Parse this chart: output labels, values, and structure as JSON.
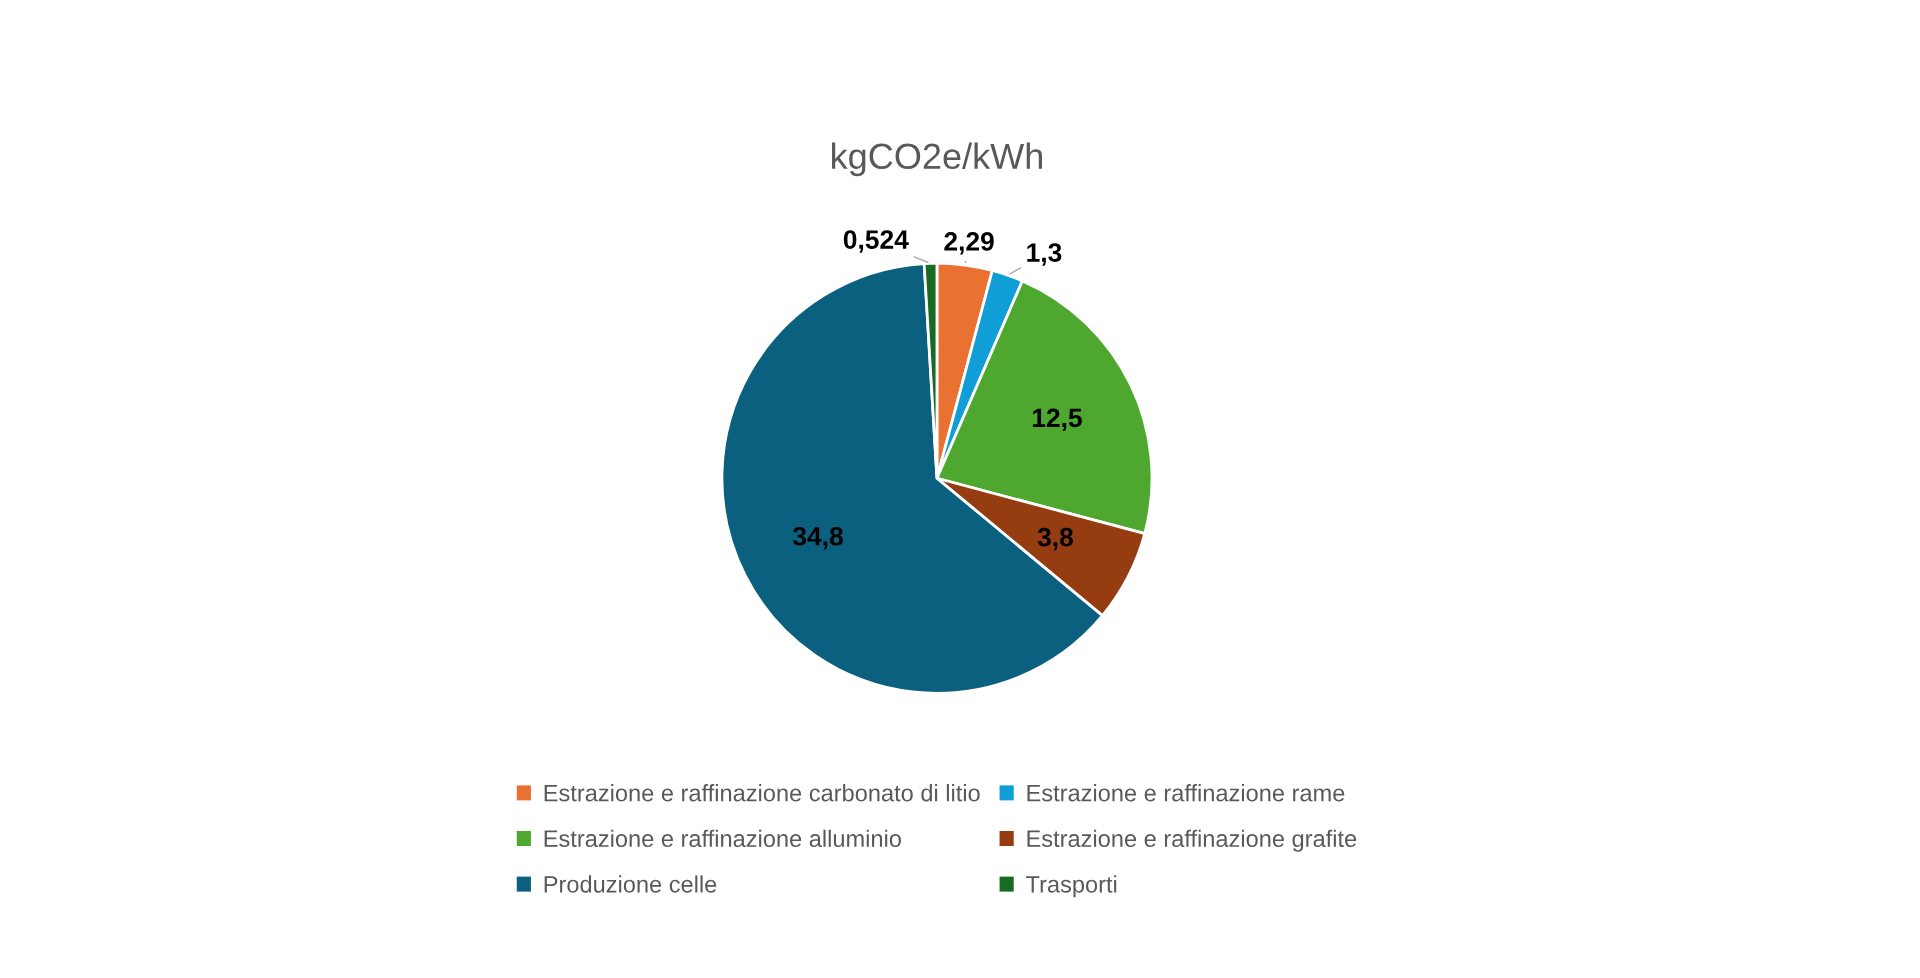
{
  "chart_data": {
    "type": "pie",
    "title": "kgCO2e/kWh",
    "categories": [
      "Estrazione e raffinazione carbonato di litio",
      "Estrazione e raffinazione rame",
      "Estrazione e raffinazione alluminio",
      "Estrazione e raffinazione grafite",
      "Produzione celle",
      "Trasporti"
    ],
    "values": [
      2.29,
      1.3,
      12.5,
      3.8,
      34.8,
      0.524
    ],
    "value_labels": [
      "2,29",
      "1,3",
      "12,5",
      "3,8",
      "34,8",
      "0,524"
    ],
    "colors": [
      "#e97132",
      "#0f9ed5",
      "#4ea72e",
      "#963c11",
      "#0b6080",
      "#196b24"
    ],
    "legend": "bottom"
  }
}
